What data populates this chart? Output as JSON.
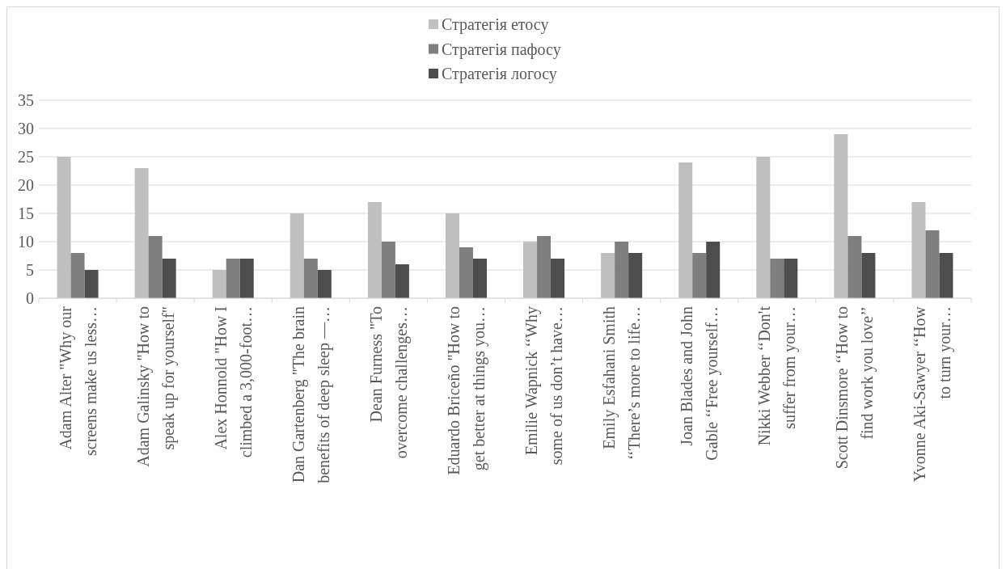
{
  "chart_data": {
    "type": "bar",
    "categories": [
      "Adam Alter \"Why our\nscreens make us less…",
      "Adam Galinsky \"How to\nspeak up for yourself\"",
      "Alex Honnold \"How I\nclimbed a 3,000-foot…",
      "Dan Gartenberg \"The brain\nbenefits of deep sleep —…",
      "Dean Furness \"To\novercome challenges…",
      "Eduardo Briceño \"How to\nget better at things you…",
      "Emilie Wapnick ‘‘Why\nsome of us don’t have…",
      "Emily Esfahani Smith\n‘‘There’s more to life…",
      "Joan Blades and John\nGable ‘‘Free yourself…",
      "Nikki Webber ‘‘Don't\nsuffer from your…",
      "Scott Dinsmore ‘‘How to\nfind work you love’’",
      "Yvonne Aki-Sawyer ‘‘How\nto turn your…"
    ],
    "series": [
      {
        "name": "Стратегія етосу",
        "color": "#bfbfbf",
        "values": [
          25,
          23,
          5,
          15,
          17,
          15,
          10,
          8,
          24,
          25,
          29,
          17
        ]
      },
      {
        "name": "Стратегія пафосу",
        "color": "#7f7f7f",
        "values": [
          8,
          11,
          7,
          7,
          10,
          9,
          11,
          10,
          8,
          7,
          11,
          12
        ]
      },
      {
        "name": "Стратегія логосу",
        "color": "#4d4d4d",
        "values": [
          5,
          7,
          7,
          5,
          6,
          7,
          7,
          8,
          10,
          7,
          8,
          8
        ]
      }
    ],
    "ylim": [
      0,
      35
    ],
    "yticks": [
      0,
      5,
      10,
      15,
      20,
      25,
      30,
      35
    ],
    "grid": "y",
    "legend": "top"
  }
}
